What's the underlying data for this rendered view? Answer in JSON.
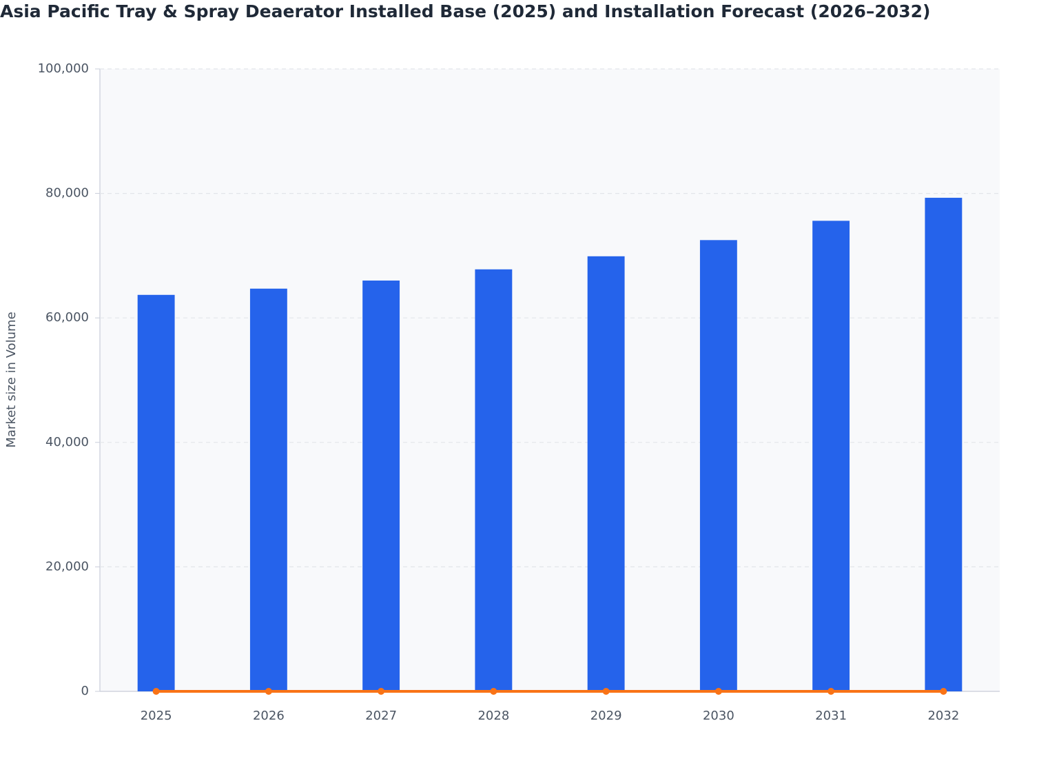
{
  "chart_data": {
    "type": "bar",
    "title": "Asia Pacific Tray & Spray Deaerator Installed Base (2025) and Installation Forecast (2026–2032)",
    "y_label": "Market size in Volume",
    "categories": [
      "2025",
      "2026",
      "2027",
      "2028",
      "2029",
      "2030",
      "2031",
      "2032"
    ],
    "series": [
      {
        "type": "bar",
        "color": "#2563eb",
        "values": [
          63700,
          64700,
          66000,
          67800,
          69900,
          72500,
          75600,
          79300
        ]
      },
      {
        "type": "line",
        "color": "#f97316",
        "values": [
          0,
          0,
          0,
          0,
          0,
          0,
          0,
          0
        ]
      }
    ],
    "ylim": [
      0,
      100000
    ],
    "yticks": [
      0,
      {
        "value": 20000,
        "label": "20,000"
      },
      {
        "value": 40000,
        "label": "40,000"
      },
      {
        "value": 60000,
        "label": "60,000"
      },
      {
        "value": 80000,
        "label": "80,000"
      },
      {
        "value": 100000,
        "label": "100,000"
      }
    ],
    "grid": true
  }
}
